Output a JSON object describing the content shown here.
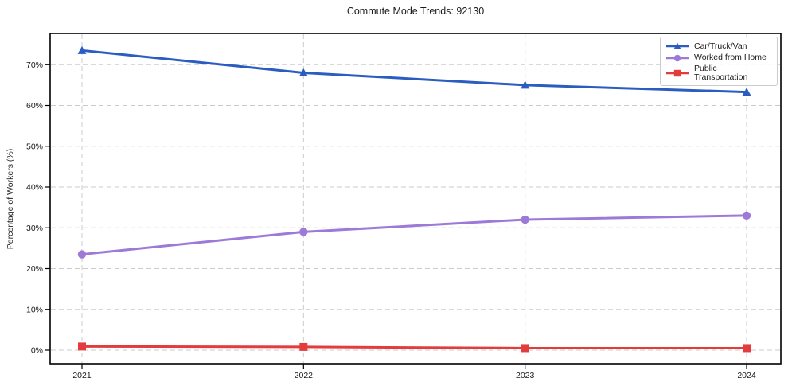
{
  "chart_data": {
    "type": "line",
    "title": "Commute Mode Trends: 92130",
    "xlabel": "",
    "ylabel": "Percentage of Workers (%)",
    "x": [
      "2021",
      "2022",
      "2023",
      "2024"
    ],
    "series": [
      {
        "name": "Car/Truck/Van",
        "color": "#2b5dc0",
        "marker": "triangle",
        "values": [
          73.5,
          68.0,
          65.0,
          63.3
        ]
      },
      {
        "name": "Worked from Home",
        "color": "#9d7ad8",
        "marker": "circle",
        "values": [
          23.5,
          29.0,
          32.0,
          33.0
        ]
      },
      {
        "name": "Public Transportation",
        "color": "#e23c3c",
        "marker": "square",
        "values": [
          0.9,
          0.8,
          0.5,
          0.5
        ]
      }
    ],
    "yticks": [
      0,
      10,
      20,
      30,
      40,
      50,
      60,
      70
    ],
    "ytick_labels": [
      "0%",
      "10%",
      "20%",
      "30%",
      "40%",
      "50%",
      "60%",
      "70%"
    ],
    "ylim": [
      -3.4,
      77.7
    ],
    "grid": true,
    "grid_style": "dashed",
    "legend_position": "upper right"
  }
}
